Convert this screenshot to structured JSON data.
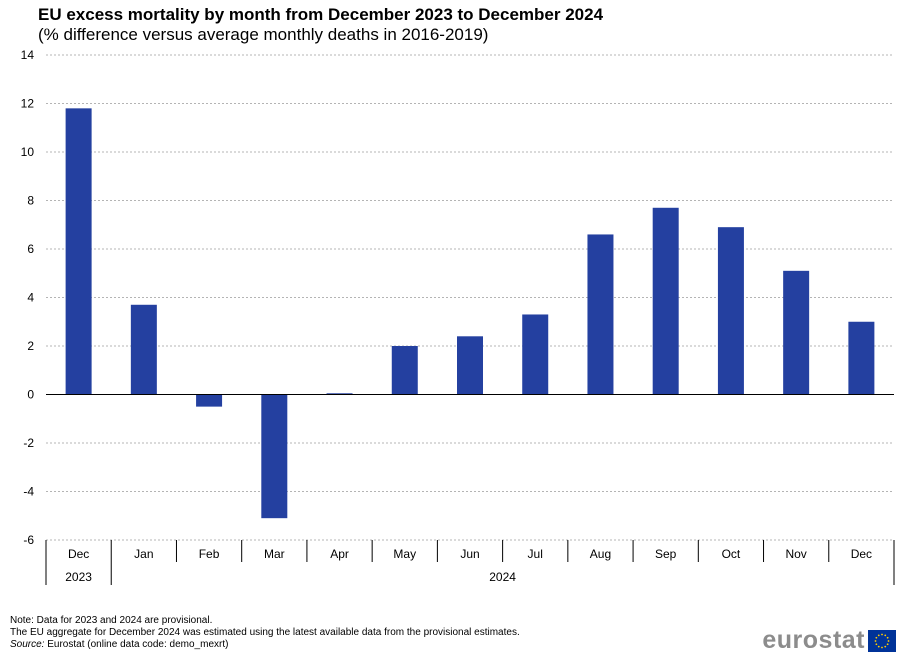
{
  "chart_data": {
    "type": "bar",
    "title": "EU excess mortality by month from December 2023 to December 2024",
    "subtitle": "(% difference versus average monthly deaths in 2016-2019)",
    "categories": [
      "Dec",
      "Jan",
      "Feb",
      "Mar",
      "Apr",
      "May",
      "Jun",
      "Jul",
      "Aug",
      "Sep",
      "Oct",
      "Nov",
      "Dec"
    ],
    "year_groups": [
      {
        "label": "2023",
        "count": 1
      },
      {
        "label": "2024",
        "count": 12
      }
    ],
    "values": [
      11.8,
      3.7,
      -0.5,
      -5.1,
      0.05,
      2.0,
      2.4,
      3.3,
      6.6,
      7.7,
      6.9,
      5.1,
      3.0
    ],
    "ylim": [
      -6,
      14
    ],
    "yticks": [
      -6,
      -4,
      -2,
      0,
      2,
      4,
      6,
      8,
      10,
      12,
      14
    ],
    "xlabel": "",
    "ylabel": "",
    "grid": true,
    "bar_color": "#2440a0"
  },
  "notes": {
    "line1": "Note: Data  for 2023 and 2024 are provisional.",
    "line2": "The EU  aggregate for December 2024 was estimated using the latest available data from the provisional estimates.",
    "source_label": "Source:",
    "source_text": " Eurostat (online data code: demo_mexrt)"
  },
  "logo": {
    "text": "eurostat",
    "flag_color": "#003399",
    "star_color": "#ffcc00"
  }
}
